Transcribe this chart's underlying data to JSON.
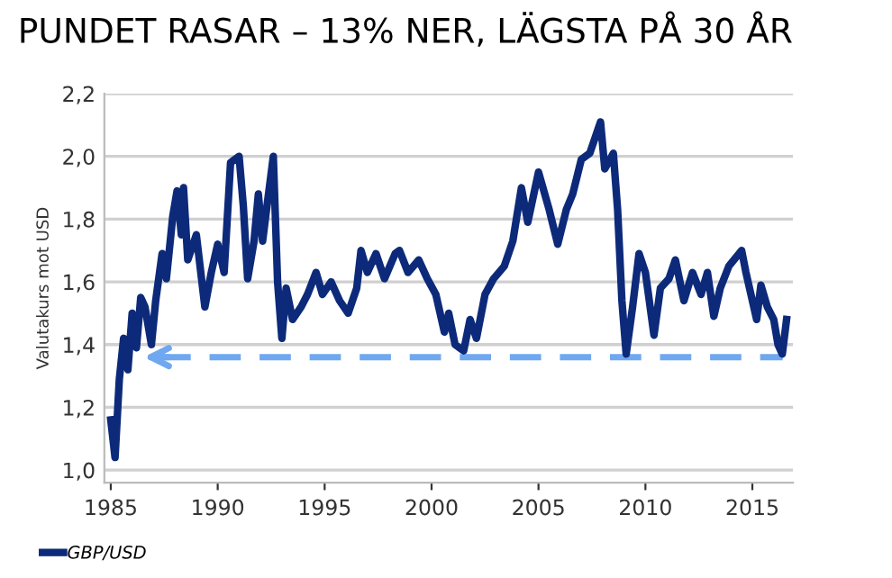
{
  "chart_data": {
    "type": "line",
    "title": "PUNDET RASAR – 13% NER, LÄGSTA PÅ 30 ÅR",
    "ylabel": "Valutakurs mot USD",
    "x": [
      1985.0,
      1985.2,
      1985.4,
      1985.6,
      1985.8,
      1986.0,
      1986.2,
      1986.4,
      1986.6,
      1986.9,
      1987.1,
      1987.4,
      1987.6,
      1987.9,
      1988.1,
      1988.3,
      1988.4,
      1988.6,
      1989.0,
      1989.4,
      1989.7,
      1990.0,
      1990.3,
      1990.6,
      1991.0,
      1991.2,
      1991.4,
      1991.7,
      1991.9,
      1992.1,
      1992.3,
      1992.6,
      1992.8,
      1993.0,
      1993.2,
      1993.5,
      1993.9,
      1994.2,
      1994.6,
      1994.9,
      1995.3,
      1995.7,
      1996.1,
      1996.5,
      1996.7,
      1997.0,
      1997.4,
      1997.8,
      1998.3,
      1998.5,
      1998.9,
      1999.4,
      1999.8,
      2000.2,
      2000.6,
      2000.8,
      2001.1,
      2001.5,
      2001.8,
      2002.1,
      2002.5,
      2002.9,
      2003.4,
      2003.8,
      2004.2,
      2004.5,
      2005.0,
      2005.5,
      2005.9,
      2006.3,
      2006.6,
      2007.0,
      2007.4,
      2007.9,
      2008.1,
      2008.5,
      2008.7,
      2008.9,
      2009.1,
      2009.4,
      2009.7,
      2010.0,
      2010.4,
      2010.7,
      2011.1,
      2011.4,
      2011.8,
      2012.2,
      2012.6,
      2012.9,
      2013.2,
      2013.5,
      2013.9,
      2014.5,
      2014.7,
      2015.2,
      2015.4,
      2015.7,
      2016.0,
      2016.2,
      2016.4,
      2016.6
    ],
    "series": [
      {
        "name": "GBP/USD",
        "color": "#0d2a7a",
        "values": [
          1.16,
          1.04,
          1.29,
          1.42,
          1.32,
          1.5,
          1.39,
          1.55,
          1.52,
          1.4,
          1.54,
          1.69,
          1.61,
          1.81,
          1.89,
          1.75,
          1.9,
          1.67,
          1.75,
          1.52,
          1.63,
          1.72,
          1.63,
          1.98,
          2.0,
          1.84,
          1.61,
          1.73,
          1.88,
          1.73,
          1.84,
          2.0,
          1.6,
          1.42,
          1.58,
          1.48,
          1.52,
          1.56,
          1.63,
          1.56,
          1.6,
          1.54,
          1.5,
          1.58,
          1.7,
          1.63,
          1.69,
          1.61,
          1.69,
          1.7,
          1.63,
          1.67,
          1.61,
          1.56,
          1.44,
          1.5,
          1.4,
          1.38,
          1.48,
          1.42,
          1.56,
          1.61,
          1.65,
          1.73,
          1.9,
          1.79,
          1.95,
          1.83,
          1.72,
          1.83,
          1.88,
          1.99,
          2.01,
          2.11,
          1.96,
          2.01,
          1.83,
          1.54,
          1.37,
          1.52,
          1.69,
          1.63,
          1.43,
          1.58,
          1.61,
          1.67,
          1.54,
          1.63,
          1.56,
          1.63,
          1.49,
          1.58,
          1.65,
          1.7,
          1.63,
          1.48,
          1.59,
          1.52,
          1.48,
          1.4,
          1.37,
          1.48
        ]
      }
    ],
    "xlim": [
      1984.7,
      2016.9
    ],
    "xticks": [
      1985,
      1990,
      1995,
      2000,
      2005,
      2010,
      2015
    ],
    "ylim": [
      0.96,
      2.2
    ],
    "yticks": [
      {
        "value": 1.0,
        "label": "1,0"
      },
      {
        "value": 1.2,
        "label": "1,2"
      },
      {
        "value": 1.4,
        "label": "1,4"
      },
      {
        "value": 1.6,
        "label": "1,6"
      },
      {
        "value": 1.8,
        "label": "1,8"
      },
      {
        "value": 2.0,
        "label": "2,0"
      },
      {
        "value": 2.2,
        "label": "2,2"
      }
    ],
    "ref_lines": [
      {
        "axis": "y",
        "value": 1.36,
        "color": "#6fa8f0",
        "line_style": "dashed"
      }
    ],
    "grid": "y",
    "legend": "bottom left",
    "line_style": "solid",
    "marker": "none"
  }
}
